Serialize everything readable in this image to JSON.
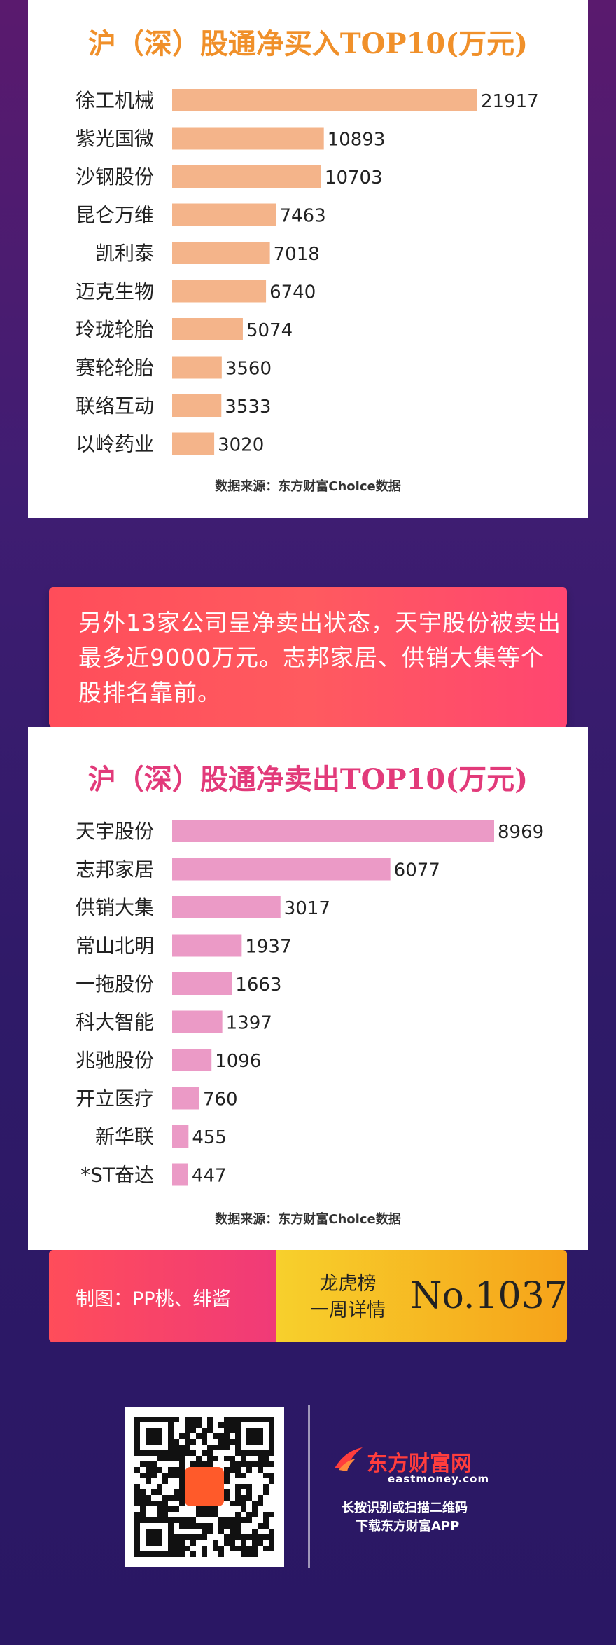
{
  "chart_data": [
    {
      "type": "bar",
      "title": "沪（深）股通净买入TOP10(万元)",
      "categories": [
        "徐工机械",
        "紫光国微",
        "沙钢股份",
        "昆仑万维",
        "凯利泰",
        "迈克生物",
        "玲珑轮胎",
        "赛轮轮胎",
        "联络互动",
        "以岭药业"
      ],
      "values": [
        21917,
        10893,
        10703,
        7463,
        7018,
        6740,
        5074,
        3560,
        3533,
        3020
      ],
      "source": "数据来源：东方财富Choice数据",
      "bar_color": "#f4b48a"
    },
    {
      "type": "bar",
      "title": "沪（深）股通净卖出TOP10(万元)",
      "categories": [
        "天宇股份",
        "志邦家居",
        "供销大集",
        "常山北明",
        "一拖股份",
        "科大智能",
        "兆驰股份",
        "开立医疗",
        "新华联",
        "*ST奋达"
      ],
      "values": [
        8969,
        6077,
        3017,
        1937,
        1663,
        1397,
        1096,
        760,
        455,
        447
      ],
      "source": "数据来源：东方财富Choice数据",
      "bar_color": "#eb9ac6"
    }
  ],
  "callout": {
    "text": "另外13家公司呈净卖出状态，天宇股份被卖出最多近9000万元。志邦家居、供销大集等个股排名靠前。"
  },
  "footer": {
    "credit": "制图：PP桃、绯酱",
    "series_line1": "龙虎榜",
    "series_line2": "一周详情",
    "issue": "No.1037"
  },
  "brand": {
    "name": "东方财富网",
    "url": "eastmoney.com",
    "line1": "长按识别或扫描二维码",
    "line2": "下载东方财富APP"
  }
}
